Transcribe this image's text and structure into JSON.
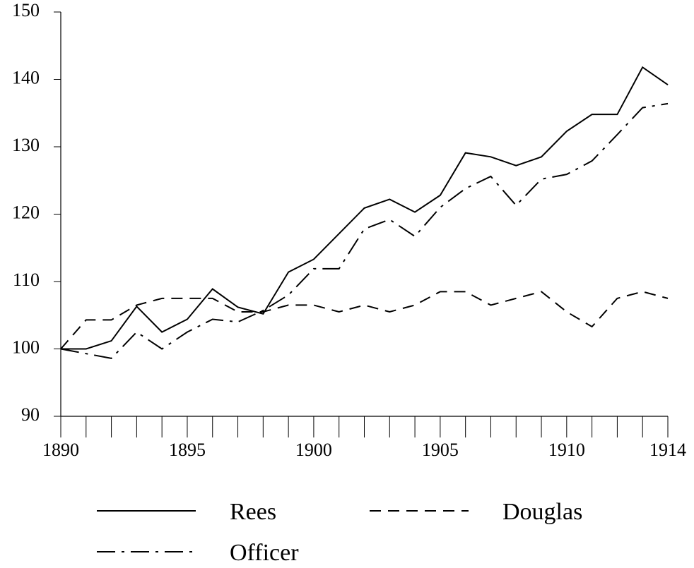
{
  "chart_data": {
    "type": "line",
    "x": [
      1890,
      1891,
      1892,
      1893,
      1894,
      1895,
      1896,
      1897,
      1898,
      1899,
      1900,
      1901,
      1902,
      1903,
      1904,
      1905,
      1906,
      1907,
      1908,
      1909,
      1910,
      1911,
      1912,
      1913,
      1914
    ],
    "series": [
      {
        "name": "Rees",
        "color": "#000000",
        "dash": "solid",
        "values": [
          100,
          100,
          101.2,
          106.3,
          102.5,
          104.4,
          108.9,
          106.2,
          105.2,
          111.4,
          113.3,
          117.1,
          120.9,
          122.2,
          120.3,
          122.8,
          129.1,
          128.5,
          127.2,
          128.5,
          132.3,
          134.8,
          134.8,
          141.8,
          139.2
        ]
      },
      {
        "name": "Douglas",
        "color": "#000000",
        "dash": "dashed",
        "values": [
          100,
          104.3,
          104.3,
          106.5,
          107.5,
          107.5,
          107.5,
          105.5,
          105.5,
          106.5,
          106.5,
          105.5,
          106.5,
          105.5,
          106.5,
          108.5,
          108.5,
          106.5,
          107.5,
          108.5,
          105.5,
          103.3,
          107.5,
          108.5,
          107.5
        ]
      },
      {
        "name": "Officer",
        "color": "#000000",
        "dash": "dashdot",
        "values": [
          100,
          99.3,
          98.6,
          102.5,
          100,
          102.5,
          104.4,
          104,
          105.7,
          108,
          111.9,
          111.9,
          117.8,
          119.2,
          116.7,
          121,
          123.8,
          125.6,
          121.3,
          125.2,
          125.9,
          127.9,
          131.8,
          135.8,
          136.4
        ]
      }
    ],
    "xlim": [
      1890,
      1914
    ],
    "xticks": [
      1890,
      1895,
      1900,
      1905,
      1910,
      1914
    ],
    "ylim": [
      90,
      150
    ],
    "yticks": [
      90,
      100,
      110,
      120,
      130,
      140,
      150
    ],
    "grid": false
  }
}
